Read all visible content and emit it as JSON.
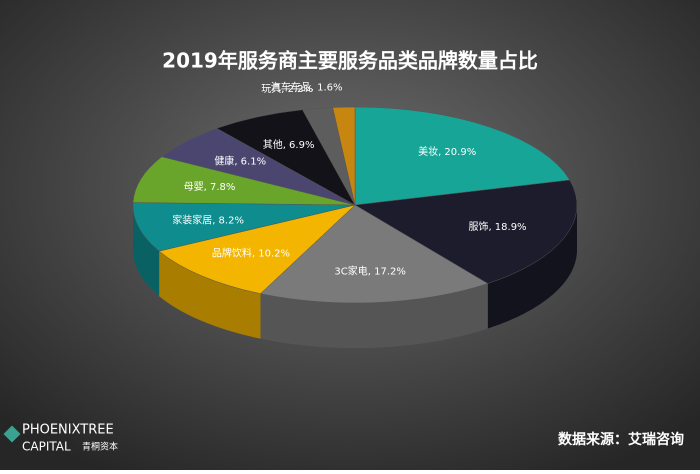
{
  "chart_data": {
    "type": "pie",
    "title": "2019年服务商主要服务品类品牌数量占比",
    "categories": [
      "美妆",
      "服饰",
      "3C家电",
      "品牌饮料",
      "家装家居",
      "母婴",
      "健康",
      "其他",
      "玩具",
      "汽车车品"
    ],
    "values": [
      20.9,
      18.9,
      17.2,
      10.2,
      8.2,
      7.8,
      6.1,
      6.9,
      2.2,
      1.6
    ],
    "value_labels": [
      ", 20.9%",
      ", 18.9%",
      ", 17.2%",
      ", 10.2%",
      ", 8.2%",
      ", 7.8%",
      ", 6.1%",
      ", 6.9%",
      ", 2.2%",
      ", 1.6%"
    ],
    "colors": [
      "#17a597",
      "#1c1c2c",
      "#7a7a7a",
      "#f3b500",
      "#0e8c8e",
      "#6aa52b",
      "#4b4670",
      "#121218",
      "#5d5d5d",
      "#c6860f"
    ],
    "source": "数据来源：艾瑞咨询",
    "logo": {
      "name": "PHOENIXTREE",
      "sub": "CAPITAL",
      "cn": "青桐资本"
    }
  }
}
